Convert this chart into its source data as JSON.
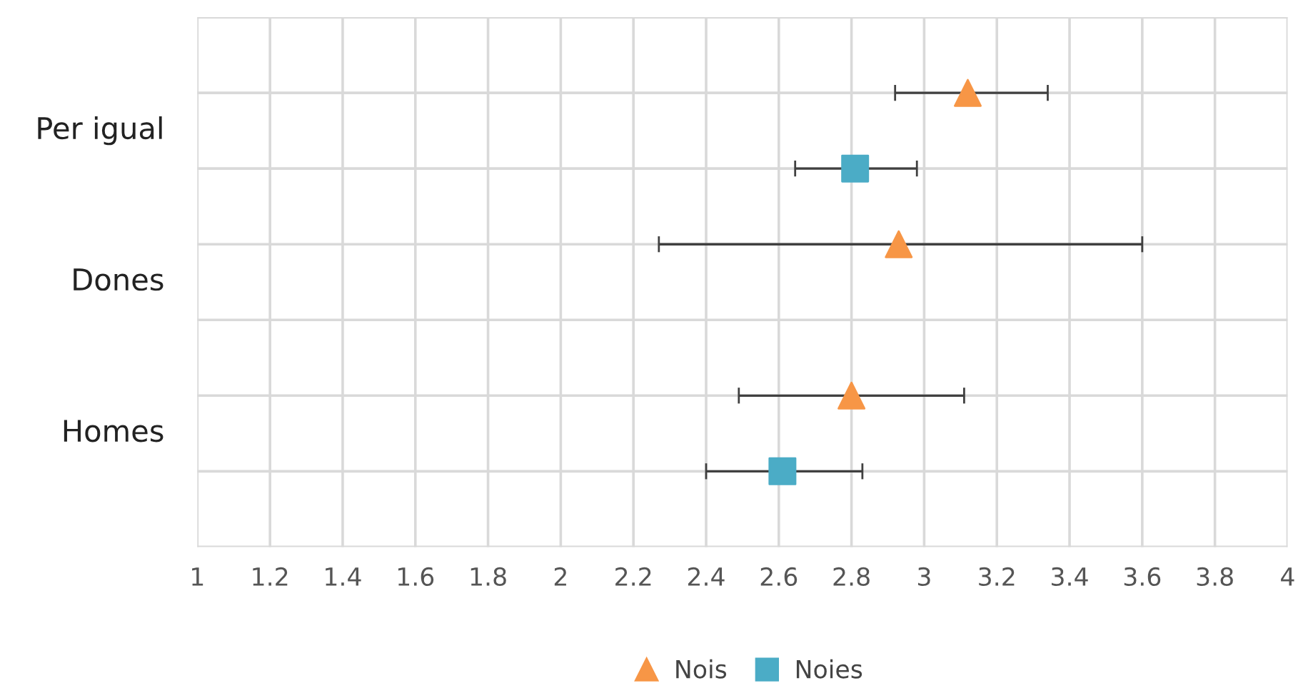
{
  "chart_data": {
    "type": "scatter",
    "orientation": "horizontal",
    "categories": [
      "Per igual",
      "Dones",
      "Homes"
    ],
    "series": [
      {
        "name": "Nois",
        "color": "#f79646",
        "marker": "triangle",
        "values": [
          3.12,
          2.93,
          2.8
        ],
        "errors": [
          [
            2.92,
            3.34
          ],
          [
            2.27,
            3.6
          ],
          [
            2.49,
            3.11
          ]
        ]
      },
      {
        "name": "Noies",
        "color": "#4bacc6",
        "marker": "square",
        "values": [
          2.81,
          null,
          2.61
        ],
        "errors": [
          [
            2.645,
            2.98
          ],
          null,
          [
            2.4,
            2.83
          ]
        ]
      }
    ],
    "xlim": [
      1,
      4
    ],
    "xticks": [
      1,
      1.2,
      1.4,
      1.6,
      1.8,
      2,
      2.2,
      2.4,
      2.6,
      2.8,
      3,
      3.2,
      3.4,
      3.6,
      3.8,
      4
    ],
    "grid": true,
    "legend": "bottom"
  }
}
